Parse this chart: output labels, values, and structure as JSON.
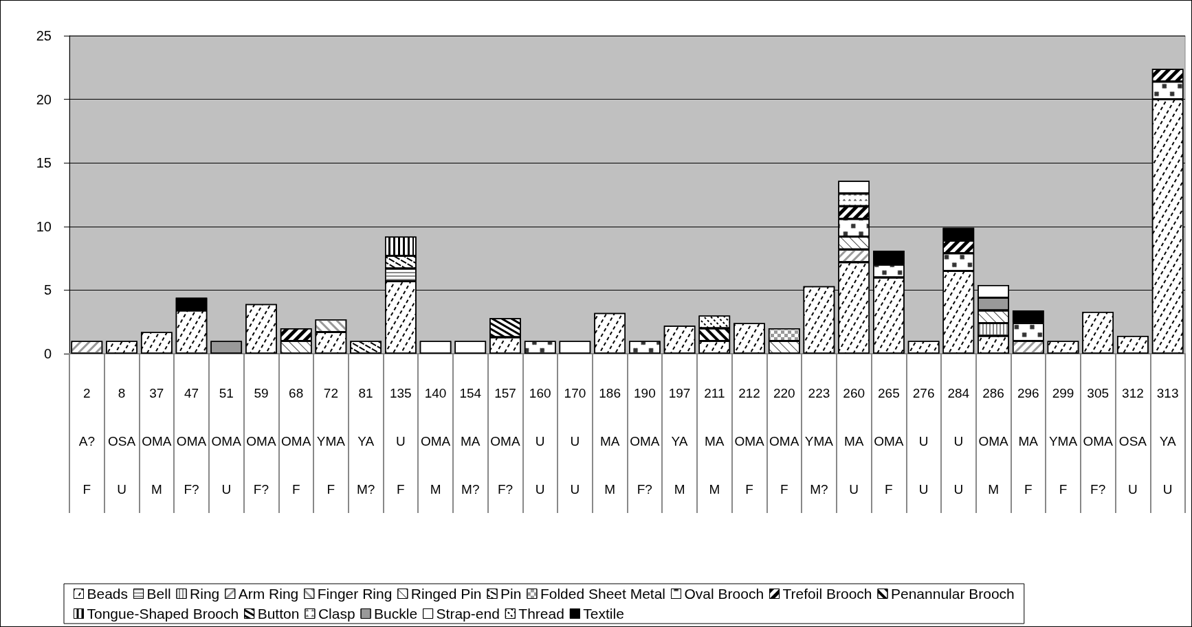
{
  "chart_data": {
    "type": "bar",
    "stacked": true,
    "grid": "y",
    "legend": "bottom",
    "categories": [
      "2\nA?\nF",
      "8\nOSA\nU",
      "37\nOMA\nM",
      "47\nOMA\nF?",
      "51\nOMA\nU",
      "59\nOMA\nF?",
      "68\nOMA\nF",
      "72\nYMA\nF",
      "81\nYA\nM?",
      "135\nU\nF",
      "140\nOMA\nM",
      "154\nMA\nM?",
      "157\nOMA\nF?",
      "160\nU\nU",
      "170\nU\nU",
      "186\nMA\nM",
      "190\nOMA\nF?",
      "197\nYA\nM",
      "211\nMA\nM",
      "212\nOMA\nF",
      "220\nOMA\nF",
      "223\nYMA\nM?",
      "260\nMA\nU",
      "265\nOMA\nF",
      "276\nU\nU",
      "284\nU\nU",
      "286\nOMA\nM",
      "296\nMA\nF",
      "299\nYMA\nF",
      "305\nOMA\nF?",
      "312\nOSA\nU",
      "313\nYA\nU"
    ],
    "ylim": [
      0,
      25
    ],
    "yticks": [
      0,
      5,
      10,
      15,
      20,
      25
    ],
    "series": [
      {
        "name": "Beads",
        "color": "#ffffff",
        "values": [
          null,
          1,
          1.7,
          3.4,
          null,
          3.9,
          null,
          1.7,
          null,
          5.7,
          null,
          null,
          1.3,
          null,
          null,
          3.2,
          null,
          2.2,
          1,
          2.4,
          null,
          5.3,
          7.2,
          6,
          1,
          6.5,
          1.4,
          null,
          1,
          3.3,
          1.4,
          20
        ]
      },
      {
        "name": "Bell",
        "color": "#ffffff",
        "values": [
          null,
          null,
          null,
          null,
          null,
          null,
          null,
          null,
          null,
          1,
          null,
          null,
          null,
          null,
          null,
          null,
          null,
          null,
          null,
          null,
          null,
          null,
          null,
          null,
          null,
          null,
          null,
          null,
          null,
          null,
          null,
          null
        ]
      },
      {
        "name": "Ring",
        "color": "#ffffff",
        "values": [
          null,
          null,
          null,
          null,
          null,
          null,
          null,
          null,
          null,
          null,
          null,
          null,
          null,
          null,
          null,
          null,
          null,
          null,
          null,
          null,
          null,
          null,
          null,
          null,
          null,
          null,
          1,
          null,
          null,
          null,
          null,
          null
        ]
      },
      {
        "name": "Arm Ring",
        "color": "#ffffff",
        "values": [
          1,
          null,
          null,
          null,
          null,
          null,
          null,
          null,
          null,
          null,
          null,
          null,
          null,
          null,
          null,
          null,
          null,
          null,
          null,
          null,
          null,
          null,
          1,
          null,
          null,
          null,
          null,
          1,
          null,
          null,
          null,
          null
        ]
      },
      {
        "name": "Finger Ring",
        "color": "#ffffff",
        "values": [
          null,
          null,
          null,
          null,
          null,
          null,
          null,
          1,
          null,
          null,
          null,
          null,
          null,
          null,
          null,
          null,
          null,
          null,
          null,
          null,
          null,
          null,
          null,
          null,
          null,
          null,
          null,
          null,
          null,
          null,
          null,
          null
        ]
      },
      {
        "name": "Ringed Pin",
        "color": "#ffffff",
        "values": [
          null,
          null,
          null,
          null,
          null,
          null,
          1,
          null,
          null,
          null,
          null,
          null,
          null,
          null,
          null,
          null,
          null,
          null,
          null,
          null,
          1,
          null,
          1,
          null,
          null,
          null,
          1,
          null,
          null,
          null,
          null,
          null
        ]
      },
      {
        "name": "Pin",
        "color": "#ffffff",
        "values": [
          null,
          null,
          null,
          null,
          null,
          null,
          null,
          null,
          1,
          1,
          null,
          null,
          null,
          null,
          null,
          null,
          null,
          null,
          null,
          null,
          null,
          null,
          null,
          null,
          null,
          null,
          null,
          null,
          null,
          null,
          null,
          null
        ]
      },
      {
        "name": "Folded Sheet Metal",
        "color": "#ffffff",
        "values": [
          null,
          null,
          null,
          null,
          null,
          null,
          null,
          null,
          null,
          null,
          null,
          null,
          null,
          null,
          null,
          null,
          null,
          null,
          null,
          null,
          1,
          null,
          null,
          null,
          null,
          null,
          null,
          null,
          null,
          null,
          null,
          null
        ]
      },
      {
        "name": "Oval Brooch",
        "color": "#ffffff",
        "values": [
          null,
          null,
          null,
          null,
          null,
          null,
          null,
          null,
          null,
          null,
          null,
          null,
          null,
          1,
          null,
          null,
          1,
          null,
          null,
          null,
          null,
          null,
          1.4,
          1,
          null,
          1.4,
          null,
          1.4,
          null,
          null,
          null,
          1.4
        ]
      },
      {
        "name": "Trefoil Brooch",
        "color": "#ffffff",
        "values": [
          null,
          null,
          null,
          null,
          null,
          null,
          1,
          null,
          null,
          null,
          null,
          null,
          null,
          null,
          null,
          null,
          null,
          null,
          null,
          null,
          null,
          null,
          1,
          null,
          null,
          1,
          null,
          null,
          null,
          null,
          null,
          1
        ]
      },
      {
        "name": "Penannular Brooch",
        "color": "#ffffff",
        "values": [
          null,
          null,
          null,
          null,
          null,
          null,
          null,
          null,
          null,
          null,
          null,
          null,
          null,
          null,
          null,
          null,
          null,
          null,
          1,
          null,
          null,
          null,
          null,
          null,
          null,
          null,
          null,
          null,
          null,
          null,
          null,
          null
        ]
      },
      {
        "name": "Tongue-Shaped Brooch",
        "color": "#ffffff",
        "values": [
          null,
          null,
          null,
          null,
          null,
          null,
          null,
          null,
          null,
          1.5,
          null,
          null,
          null,
          null,
          null,
          null,
          null,
          null,
          null,
          null,
          null,
          null,
          null,
          null,
          null,
          null,
          null,
          null,
          null,
          null,
          null,
          null
        ]
      },
      {
        "name": "Button",
        "color": "#ffffff",
        "values": [
          null,
          null,
          null,
          null,
          null,
          null,
          null,
          null,
          null,
          null,
          null,
          null,
          1.5,
          null,
          null,
          null,
          null,
          null,
          null,
          null,
          null,
          null,
          null,
          null,
          null,
          null,
          null,
          null,
          null,
          null,
          null,
          null
        ]
      },
      {
        "name": "Clasp",
        "color": "#ffffff",
        "values": [
          null,
          null,
          null,
          null,
          null,
          null,
          null,
          null,
          null,
          null,
          null,
          null,
          null,
          null,
          null,
          null,
          null,
          null,
          null,
          null,
          null,
          null,
          1,
          null,
          null,
          null,
          null,
          null,
          null,
          null,
          null,
          null
        ]
      },
      {
        "name": "Buckle",
        "color": "#999999",
        "values": [
          null,
          null,
          null,
          null,
          1,
          null,
          null,
          null,
          null,
          null,
          null,
          null,
          null,
          null,
          null,
          null,
          null,
          null,
          null,
          null,
          null,
          null,
          null,
          null,
          null,
          null,
          1,
          null,
          null,
          null,
          null,
          null
        ]
      },
      {
        "name": "Strap-end",
        "color": "#ffffff",
        "values": [
          null,
          null,
          null,
          null,
          null,
          null,
          null,
          null,
          null,
          null,
          1,
          1,
          null,
          null,
          1,
          null,
          null,
          null,
          null,
          null,
          null,
          null,
          1,
          null,
          null,
          null,
          1,
          null,
          null,
          null,
          null,
          null
        ]
      },
      {
        "name": "Thread",
        "color": "#ffffff",
        "values": [
          null,
          null,
          null,
          null,
          null,
          null,
          null,
          null,
          null,
          null,
          null,
          null,
          null,
          null,
          null,
          null,
          null,
          null,
          1,
          null,
          null,
          null,
          null,
          null,
          null,
          null,
          null,
          null,
          null,
          null,
          null,
          null
        ]
      },
      {
        "name": "Textile",
        "color": "#000000",
        "values": [
          null,
          null,
          null,
          1,
          null,
          null,
          null,
          null,
          null,
          null,
          null,
          null,
          null,
          null,
          null,
          null,
          null,
          null,
          null,
          null,
          null,
          null,
          null,
          1.1,
          null,
          1,
          null,
          1,
          null,
          null,
          null,
          null
        ]
      }
    ]
  }
}
